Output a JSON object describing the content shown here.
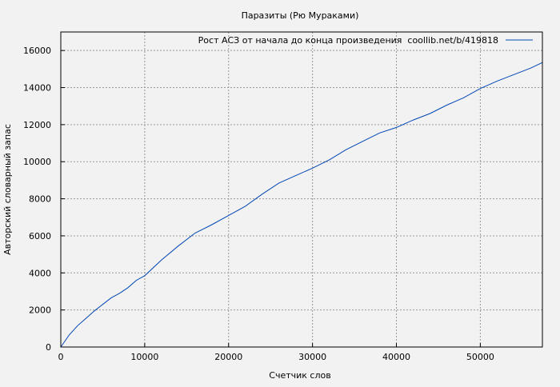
{
  "chart_data": {
    "type": "line",
    "title": "Паразиты (Рю Мураками)",
    "xlabel": "Счетчик слов",
    "ylabel": "Авторский словарный запас",
    "xlim": [
      0,
      57400
    ],
    "ylim": [
      0,
      17000
    ],
    "x_ticks": [
      "0",
      "10000",
      "20000",
      "30000",
      "40000",
      "50000"
    ],
    "y_ticks": [
      "0",
      "2000",
      "4000",
      "6000",
      "8000",
      "10000",
      "12000",
      "14000",
      "16000"
    ],
    "grid": true,
    "legend_position": "top-right",
    "series": [
      {
        "name": "Рост АСЗ от начала до конца произведения  coollib.net/b/419818",
        "color": "#0046b4",
        "x": [
          0,
          1000,
          2000,
          3000,
          4000,
          5000,
          6000,
          7000,
          8000,
          9000,
          10000,
          12000,
          14000,
          16000,
          18000,
          20000,
          22000,
          24000,
          26000,
          28000,
          30000,
          32000,
          34000,
          36000,
          38000,
          40000,
          42000,
          44000,
          46000,
          48000,
          50000,
          52000,
          54000,
          56000,
          57400
        ],
        "y": [
          0,
          650,
          1150,
          1550,
          1950,
          2300,
          2650,
          2900,
          3200,
          3600,
          3850,
          4700,
          5450,
          6150,
          6600,
          7100,
          7600,
          8250,
          8850,
          9250,
          9650,
          10100,
          10650,
          11100,
          11550,
          11850,
          12250,
          12600,
          13050,
          13450,
          13950,
          14350,
          14700,
          15050,
          15350
        ]
      }
    ]
  }
}
